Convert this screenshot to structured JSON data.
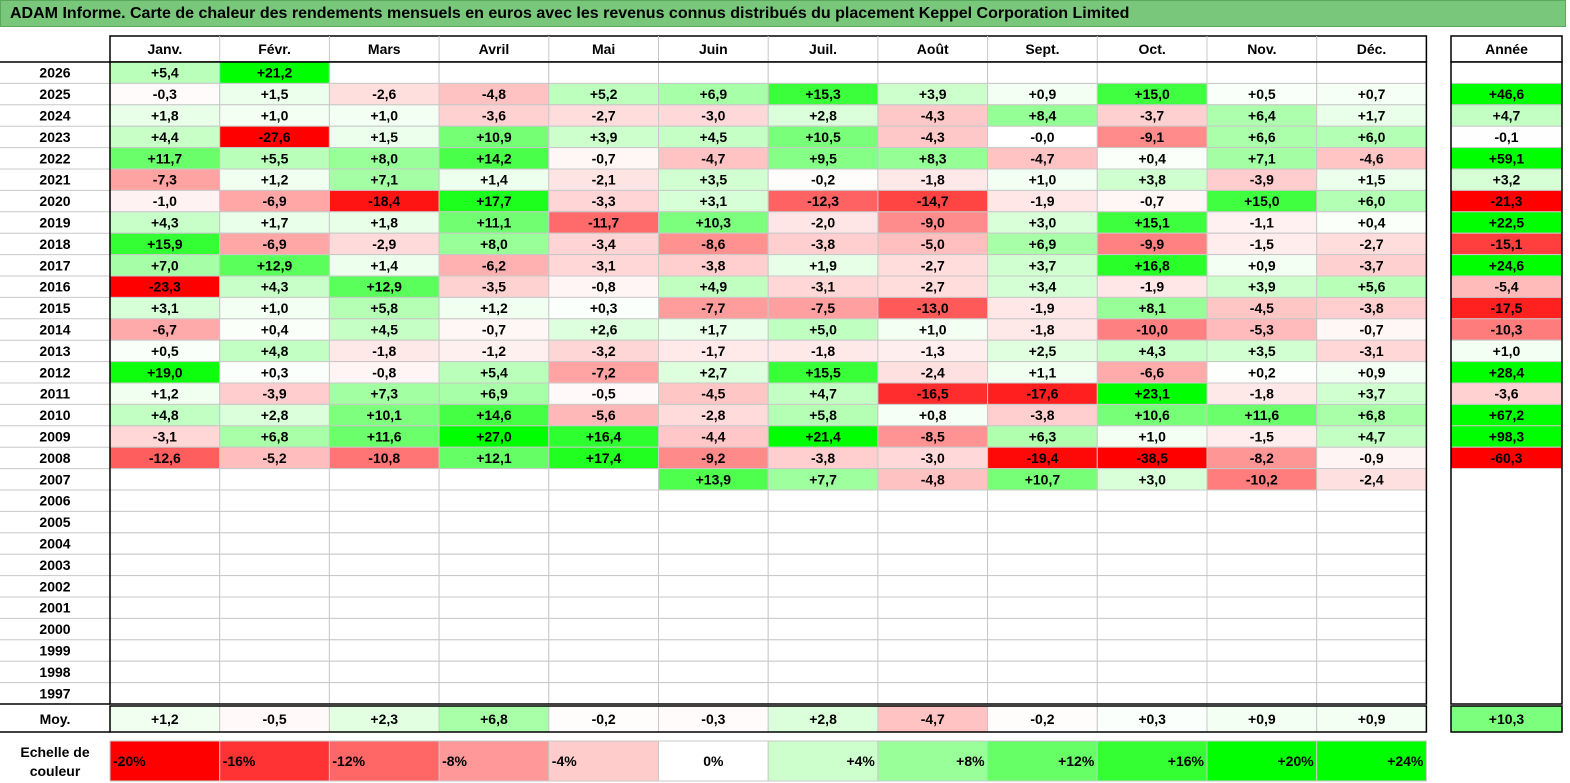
{
  "title": "ADAM Informe. Carte de chaleur des rendements mensuels en euros avec les revenus connus distribués du placement Keppel Corporation Limited",
  "chart_data": {
    "type": "heatmap",
    "title": "ADAM Informe. Carte de chaleur des rendements mensuels en euros avec les revenus connus distribués du placement Keppel Corporation Limited",
    "columns": [
      "Janv.",
      "Févr.",
      "Mars",
      "Avril",
      "Mai",
      "Juin",
      "Juil.",
      "Août",
      "Sept.",
      "Oct.",
      "Nov.",
      "Déc."
    ],
    "year_column_label": "Année",
    "rows": [
      {
        "year": "2026",
        "values": [
          "+5,4",
          "+21,2",
          "",
          "",
          "",
          "",
          "",
          "",
          "",
          "",
          "",
          ""
        ],
        "annual": ""
      },
      {
        "year": "2025",
        "values": [
          "-0,3",
          "+1,5",
          "-2,6",
          "-4,8",
          "+5,2",
          "+6,9",
          "+15,3",
          "+3,9",
          "+0,9",
          "+15,0",
          "+0,5",
          "+0,7"
        ],
        "annual": "+46,6"
      },
      {
        "year": "2024",
        "values": [
          "+1,8",
          "+1,0",
          "+1,0",
          "-3,6",
          "-2,7",
          "-3,0",
          "+2,8",
          "-4,3",
          "+8,4",
          "-3,7",
          "+6,4",
          "+1,7"
        ],
        "annual": "+4,7"
      },
      {
        "year": "2023",
        "values": [
          "+4,4",
          "-27,6",
          "+1,5",
          "+10,9",
          "+3,9",
          "+4,5",
          "+10,5",
          "-4,3",
          "-0,0",
          "-9,1",
          "+6,6",
          "+6,0"
        ],
        "annual": "-0,1"
      },
      {
        "year": "2022",
        "values": [
          "+11,7",
          "+5,5",
          "+8,0",
          "+14,2",
          "-0,7",
          "-4,7",
          "+9,5",
          "+8,3",
          "-4,7",
          "+0,4",
          "+7,1",
          "-4,6"
        ],
        "annual": "+59,1"
      },
      {
        "year": "2021",
        "values": [
          "-7,3",
          "+1,2",
          "+7,1",
          "+1,4",
          "-2,1",
          "+3,5",
          "-0,2",
          "-1,8",
          "+1,0",
          "+3,8",
          "-3,9",
          "+1,5"
        ],
        "annual": "+3,2"
      },
      {
        "year": "2020",
        "values": [
          "-1,0",
          "-6,9",
          "-18,4",
          "+17,7",
          "-3,3",
          "+3,1",
          "-12,3",
          "-14,7",
          "-1,9",
          "-0,7",
          "+15,0",
          "+6,0"
        ],
        "annual": "-21,3"
      },
      {
        "year": "2019",
        "values": [
          "+4,3",
          "+1,7",
          "+1,8",
          "+11,1",
          "-11,7",
          "+10,3",
          "-2,0",
          "-9,0",
          "+3,0",
          "+15,1",
          "-1,1",
          "+0,4"
        ],
        "annual": "+22,5"
      },
      {
        "year": "2018",
        "values": [
          "+15,9",
          "-6,9",
          "-2,9",
          "+8,0",
          "-3,4",
          "-8,6",
          "-3,8",
          "-5,0",
          "+6,9",
          "-9,9",
          "-1,5",
          "-2,7"
        ],
        "annual": "-15,1"
      },
      {
        "year": "2017",
        "values": [
          "+7,0",
          "+12,9",
          "+1,4",
          "-6,2",
          "-3,1",
          "-3,8",
          "+1,9",
          "-2,7",
          "+3,7",
          "+16,8",
          "+0,9",
          "-3,7"
        ],
        "annual": "+24,6"
      },
      {
        "year": "2016",
        "values": [
          "-23,3",
          "+4,3",
          "+12,9",
          "-3,5",
          "-0,8",
          "+4,9",
          "-3,1",
          "-2,7",
          "+3,4",
          "-1,9",
          "+3,9",
          "+5,6"
        ],
        "annual": "-5,4"
      },
      {
        "year": "2015",
        "values": [
          "+3,1",
          "+1,0",
          "+5,8",
          "+1,2",
          "+0,3",
          "-7,7",
          "-7,5",
          "-13,0",
          "-1,9",
          "+8,1",
          "-4,5",
          "-3,8"
        ],
        "annual": "-17,5"
      },
      {
        "year": "2014",
        "values": [
          "-6,7",
          "+0,4",
          "+4,5",
          "-0,7",
          "+2,6",
          "+1,7",
          "+5,0",
          "+1,0",
          "-1,8",
          "-10,0",
          "-5,3",
          "-0,7"
        ],
        "annual": "-10,3"
      },
      {
        "year": "2013",
        "values": [
          "+0,5",
          "+4,8",
          "-1,8",
          "-1,2",
          "-3,2",
          "-1,7",
          "-1,8",
          "-1,3",
          "+2,5",
          "+4,3",
          "+3,5",
          "-3,1"
        ],
        "annual": "+1,0"
      },
      {
        "year": "2012",
        "values": [
          "+19,0",
          "+0,3",
          "-0,8",
          "+5,4",
          "-7,2",
          "+2,7",
          "+15,5",
          "-2,4",
          "+1,1",
          "-6,6",
          "+0,2",
          "+0,9"
        ],
        "annual": "+28,4"
      },
      {
        "year": "2011",
        "values": [
          "+1,2",
          "-3,9",
          "+7,3",
          "+6,9",
          "-0,5",
          "-4,5",
          "+4,7",
          "-16,5",
          "-17,6",
          "+23,1",
          "-1,8",
          "+3,7"
        ],
        "annual": "-3,6"
      },
      {
        "year": "2010",
        "values": [
          "+4,8",
          "+2,8",
          "+10,1",
          "+14,6",
          "-5,6",
          "-2,8",
          "+5,8",
          "+0,8",
          "-3,8",
          "+10,6",
          "+11,6",
          "+6,8"
        ],
        "annual": "+67,2"
      },
      {
        "year": "2009",
        "values": [
          "-3,1",
          "+6,8",
          "+11,6",
          "+27,0",
          "+16,4",
          "-4,4",
          "+21,4",
          "-8,5",
          "+6,3",
          "+1,0",
          "-1,5",
          "+4,7"
        ],
        "annual": "+98,3"
      },
      {
        "year": "2008",
        "values": [
          "-12,6",
          "-5,2",
          "-10,8",
          "+12,1",
          "+17,4",
          "-9,2",
          "-3,8",
          "-3,0",
          "-19,4",
          "-38,5",
          "-8,2",
          "-0,9"
        ],
        "annual": "-60,3"
      },
      {
        "year": "2007",
        "values": [
          "",
          "",
          "",
          "",
          "",
          "+13,9",
          "+7,7",
          "-4,8",
          "+10,7",
          "+3,0",
          "-10,2",
          "-2,4"
        ],
        "annual": ""
      },
      {
        "year": "2006",
        "values": [
          "",
          "",
          "",
          "",
          "",
          "",
          "",
          "",
          "",
          "",
          "",
          ""
        ],
        "annual": ""
      },
      {
        "year": "2005",
        "values": [
          "",
          "",
          "",
          "",
          "",
          "",
          "",
          "",
          "",
          "",
          "",
          ""
        ],
        "annual": ""
      },
      {
        "year": "2004",
        "values": [
          "",
          "",
          "",
          "",
          "",
          "",
          "",
          "",
          "",
          "",
          "",
          ""
        ],
        "annual": ""
      },
      {
        "year": "2003",
        "values": [
          "",
          "",
          "",
          "",
          "",
          "",
          "",
          "",
          "",
          "",
          "",
          ""
        ],
        "annual": ""
      },
      {
        "year": "2002",
        "values": [
          "",
          "",
          "",
          "",
          "",
          "",
          "",
          "",
          "",
          "",
          "",
          ""
        ],
        "annual": ""
      },
      {
        "year": "2001",
        "values": [
          "",
          "",
          "",
          "",
          "",
          "",
          "",
          "",
          "",
          "",
          "",
          ""
        ],
        "annual": ""
      },
      {
        "year": "2000",
        "values": [
          "",
          "",
          "",
          "",
          "",
          "",
          "",
          "",
          "",
          "",
          "",
          ""
        ],
        "annual": ""
      },
      {
        "year": "1999",
        "values": [
          "",
          "",
          "",
          "",
          "",
          "",
          "",
          "",
          "",
          "",
          "",
          ""
        ],
        "annual": ""
      },
      {
        "year": "1998",
        "values": [
          "",
          "",
          "",
          "",
          "",
          "",
          "",
          "",
          "",
          "",
          "",
          ""
        ],
        "annual": ""
      },
      {
        "year": "1997",
        "values": [
          "",
          "",
          "",
          "",
          "",
          "",
          "",
          "",
          "",
          "",
          "",
          ""
        ],
        "annual": ""
      }
    ],
    "average": {
      "label": "Moy.",
      "values": [
        "+1,2",
        "-0,5",
        "+2,3",
        "+6,8",
        "-0,2",
        "-0,3",
        "+2,8",
        "-4,7",
        "-0,2",
        "+0,3",
        "+0,9",
        "+0,9"
      ],
      "annual": "+10,3"
    },
    "scale": {
      "label_line1": "Echelle de",
      "label_line2": "couleur",
      "stops": [
        "-20%",
        "-16%",
        "-12%",
        "-8%",
        "-4%",
        "0%",
        "+4%",
        "+8%",
        "+12%",
        "+16%",
        "+20%",
        "+24%"
      ]
    },
    "colors": {
      "max_negative": "#ff0000",
      "neutral": "#ffffff",
      "max_positive": "#00ff00",
      "title_bar": "#78c77a",
      "grid": "#c8c8c8"
    }
  }
}
